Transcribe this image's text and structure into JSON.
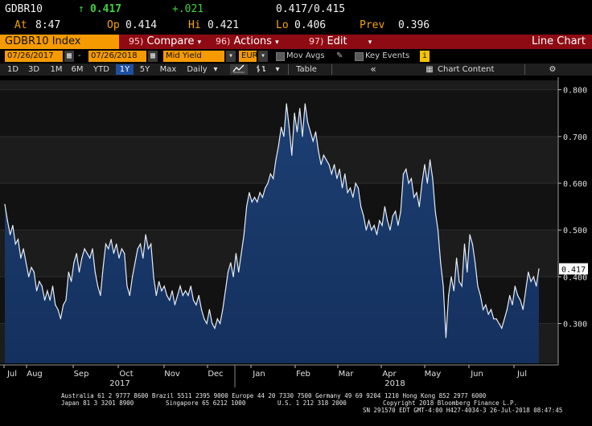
{
  "quote": {
    "ticker": "GDBR10",
    "arrow": "↑",
    "last": "0.417",
    "change": "+.021",
    "bid_ask": "0.417/0.415",
    "at_label": "At",
    "time": "8:47",
    "open_label": "Op",
    "open": "0.414",
    "high_label": "Hi",
    "high": "0.421",
    "low_label": "Lo",
    "low": "0.406",
    "prev_label": "Prev",
    "prev": "0.396"
  },
  "menu": {
    "index_name": "GDBR10 Index",
    "compare_num": "95)",
    "compare_label": "Compare",
    "actions_num": "96)",
    "actions_label": "Actions",
    "edit_num": "97)",
    "edit_label": "Edit",
    "chart_type": "Line Chart"
  },
  "toolbar": {
    "start_date": "07/26/2017",
    "end_date": "07/26/2018",
    "field": "Mid Yield",
    "currency": "EUR",
    "mov_avgs": "Mov Avgs",
    "key_events": "Key Events",
    "periods": [
      "1D",
      "3D",
      "1M",
      "6M",
      "YTD",
      "1Y",
      "5Y",
      "Max"
    ],
    "active_period": "1Y",
    "frequency": "Daily",
    "table_label": "Table",
    "chart_content_label": "Chart Content"
  },
  "colors": {
    "accent_orange": "#f59a00",
    "menu_red": "#8e0b14",
    "area_fill": "#14305e",
    "line": "#e6ecf5",
    "price_up": "#3fd13f"
  },
  "chart_data": {
    "type": "area",
    "series": [
      {
        "values": [
          0.555,
          0.52,
          0.49,
          0.51,
          0.47,
          0.48,
          0.44,
          0.46,
          0.43,
          0.4,
          0.42,
          0.41,
          0.37,
          0.39,
          0.38,
          0.35,
          0.37,
          0.35,
          0.38,
          0.34,
          0.33,
          0.31,
          0.34,
          0.35,
          0.41,
          0.39,
          0.43,
          0.45,
          0.41,
          0.44,
          0.46,
          0.45,
          0.44,
          0.46,
          0.41,
          0.38,
          0.36,
          0.42,
          0.47,
          0.46,
          0.48,
          0.45,
          0.47,
          0.44,
          0.46,
          0.45,
          0.38,
          0.36,
          0.4,
          0.43,
          0.46,
          0.47,
          0.44,
          0.49,
          0.46,
          0.47,
          0.4,
          0.36,
          0.39,
          0.37,
          0.38,
          0.36,
          0.35,
          0.37,
          0.34,
          0.36,
          0.38,
          0.36,
          0.37,
          0.36,
          0.38,
          0.35,
          0.34,
          0.36,
          0.33,
          0.31,
          0.3,
          0.33,
          0.3,
          0.29,
          0.31,
          0.3,
          0.33,
          0.37,
          0.41,
          0.43,
          0.4,
          0.45,
          0.41,
          0.45,
          0.49,
          0.55,
          0.58,
          0.56,
          0.57,
          0.56,
          0.58,
          0.57,
          0.59,
          0.6,
          0.62,
          0.61,
          0.65,
          0.68,
          0.72,
          0.7,
          0.77,
          0.72,
          0.66,
          0.75,
          0.71,
          0.76,
          0.7,
          0.77,
          0.73,
          0.71,
          0.69,
          0.71,
          0.67,
          0.64,
          0.66,
          0.65,
          0.64,
          0.62,
          0.64,
          0.61,
          0.63,
          0.59,
          0.62,
          0.58,
          0.59,
          0.57,
          0.6,
          0.59,
          0.55,
          0.53,
          0.5,
          0.52,
          0.5,
          0.51,
          0.49,
          0.52,
          0.51,
          0.55,
          0.52,
          0.5,
          0.53,
          0.54,
          0.51,
          0.54,
          0.62,
          0.63,
          0.6,
          0.61,
          0.57,
          0.58,
          0.55,
          0.6,
          0.64,
          0.6,
          0.65,
          0.61,
          0.54,
          0.5,
          0.43,
          0.38,
          0.27,
          0.36,
          0.4,
          0.37,
          0.44,
          0.39,
          0.38,
          0.47,
          0.41,
          0.49,
          0.47,
          0.43,
          0.38,
          0.36,
          0.33,
          0.34,
          0.32,
          0.33,
          0.31,
          0.31,
          0.3,
          0.29,
          0.31,
          0.33,
          0.36,
          0.34,
          0.38,
          0.36,
          0.35,
          0.33,
          0.37,
          0.41,
          0.39,
          0.4,
          0.38,
          0.417
        ]
      }
    ],
    "yticks": [
      "0.300",
      "0.400",
      "0.500",
      "0.600",
      "0.700",
      "0.800"
    ],
    "ylim": [
      0.215,
      0.82
    ],
    "xticks_months": [
      "Jul",
      "Aug",
      "Sep",
      "Oct",
      "Nov",
      "Dec",
      "Jan",
      "Feb",
      "Mar",
      "Apr",
      "May",
      "Jun",
      "Jul"
    ],
    "xticks_years": [
      "2017",
      "2018"
    ],
    "last_value_label": "0.417",
    "grid": true
  },
  "footer": {
    "line1": "Australia 61 2 9777 8600 Brazil 5511 2395 9000 Europe 44 20 7330 7500 Germany 49 69 9204 1210 Hong Kong 852 2977 6000",
    "line2a": "Japan 81 3 3201 8900",
    "line2b": "Singapore 65 6212 1000",
    "line2c": "U.S. 1 212 318 2000",
    "line2d": "Copyright 2018 Bloomberg Finance L.P.",
    "line3": "SN 291570 EDT  GMT-4:00 H427-4034-3 26-Jul-2018 08:47:45"
  }
}
